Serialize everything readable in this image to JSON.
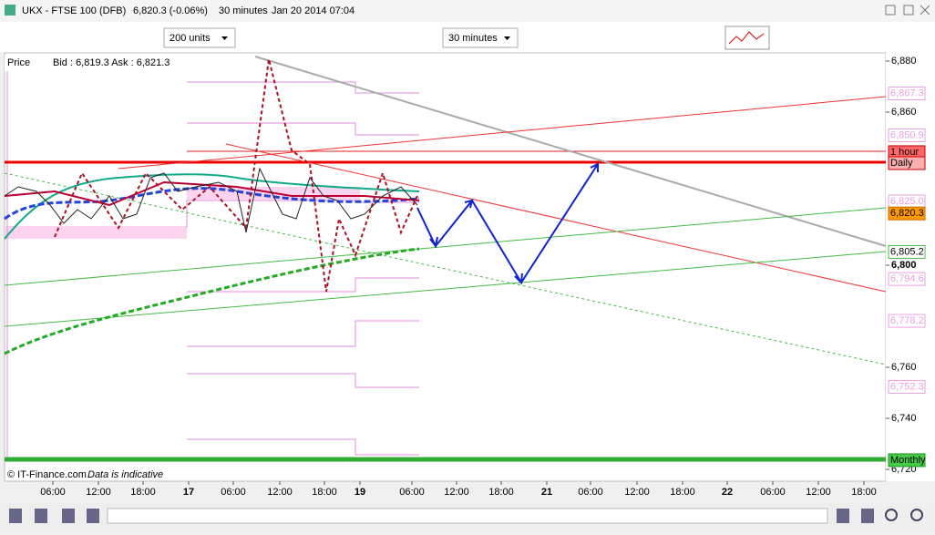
{
  "window": {
    "title": "UKX - FTSE 100 (DFB)",
    "price": "6,820.3 (-0.06%)",
    "interval": "30 minutes",
    "timestamp": "Jan 20 2014 07:04"
  },
  "toolbar": {
    "units": "200 units",
    "timeframe": "30 minutes"
  },
  "info": {
    "price_label": "Price",
    "quote": "Bid : 6,819.3 Ask : 6,821.3"
  },
  "price_axis": [
    {
      "value": 6880,
      "label": "6,880"
    },
    {
      "value": 6860,
      "label": "6,860"
    },
    {
      "value": 6800,
      "label": "6,800"
    },
    {
      "value": 6760,
      "label": "6,760"
    },
    {
      "value": 6740,
      "label": "6,740"
    },
    {
      "value": 6720,
      "label": "6,720"
    }
  ],
  "price_tags": [
    {
      "value": 6867.3,
      "label": "6,867.3",
      "color": "pivot"
    },
    {
      "value": 6850.9,
      "label": "6,850.9",
      "color": "pivot"
    },
    {
      "value": 6844.3,
      "label": "1 hour",
      "color": "hour"
    },
    {
      "value": 6840,
      "label": "Daily",
      "color": "daily"
    },
    {
      "value": 6825.0,
      "label": "6,825.0",
      "color": "pivot"
    },
    {
      "value": 6820.3,
      "label": "6,820.3",
      "color": "last"
    },
    {
      "value": 6805.2,
      "label": "6,805.2",
      "color": "green"
    },
    {
      "value": 6794.6,
      "label": "6,794.6",
      "color": "pivot"
    },
    {
      "value": 6778.2,
      "label": "6,778.2",
      "color": "pivot"
    },
    {
      "value": 6752.3,
      "label": "6,752.3",
      "color": "pivot"
    },
    {
      "value": 6723.6,
      "label": "Monthly",
      "color": "monthly"
    }
  ],
  "time_axis": [
    {
      "label": "06:00"
    },
    {
      "label": "12:00"
    },
    {
      "label": "18:00"
    },
    {
      "label": "17",
      "bold": true
    },
    {
      "label": "06:00"
    },
    {
      "label": "12:00"
    },
    {
      "label": "18:00"
    },
    {
      "label": "19",
      "bold": true
    },
    {
      "label": "06:00"
    },
    {
      "label": "12:00"
    },
    {
      "label": "18:00"
    },
    {
      "label": "21",
      "bold": true
    },
    {
      "label": "06:00"
    },
    {
      "label": "12:00"
    },
    {
      "label": "18:00"
    },
    {
      "label": "22",
      "bold": true
    },
    {
      "label": "06:00"
    },
    {
      "label": "12:00"
    },
    {
      "label": "18:00"
    }
  ],
  "footer": {
    "copyright": "© IT-Finance.com",
    "disclaimer": "Data is indicative"
  }
}
